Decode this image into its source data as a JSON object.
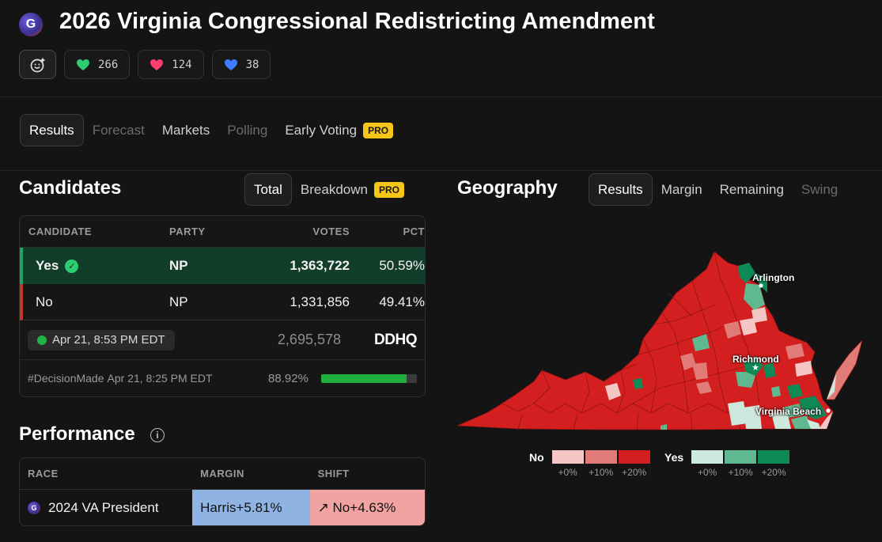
{
  "header": {
    "logo_letter": "G",
    "title": "2026 Virginia Congressional Redistricting Amendment",
    "reactions": [
      {
        "icon": "green-heart-icon",
        "color": "#2ecc71",
        "count": "266"
      },
      {
        "icon": "pink-heart-icon",
        "color": "#ff3d6e",
        "count": "124"
      },
      {
        "icon": "blue-heart-icon",
        "color": "#3d7bff",
        "count": "38"
      }
    ]
  },
  "tabs": {
    "results": "Results",
    "forecast": "Forecast",
    "markets": "Markets",
    "polling": "Polling",
    "early_voting": "Early Voting",
    "pro_badge": "PRO"
  },
  "candidates": {
    "title": "Candidates",
    "total": "Total",
    "breakdown": "Breakdown",
    "pro_badge": "PRO",
    "headers": {
      "candidate": "CANDIDATE",
      "party": "PARTY",
      "votes": "VOTES",
      "pct": "PCT"
    },
    "rows": [
      {
        "name": "Yes",
        "party": "NP",
        "votes": "1,363,722",
        "pct": "50.59%"
      },
      {
        "name": "No",
        "party": "NP",
        "votes": "1,331,856",
        "pct": "49.41%"
      }
    ],
    "updated": "Apr 21, 8:53 PM EDT",
    "total_votes": "2,695,578",
    "source": "DDHQ",
    "decision_tag": "#DecisionMade",
    "decision_time": "Apr 21, 8:25 PM EDT",
    "reporting_pct": "88.92%",
    "reporting_fraction": 0.8892
  },
  "performance": {
    "title": "Performance",
    "headers": {
      "race": "RACE",
      "margin": "MARGIN",
      "shift": "SHIFT"
    },
    "rows": [
      {
        "race": "2024 VA President",
        "margin": "Harris+5.81%",
        "shift": "↗ No+4.63%"
      }
    ]
  },
  "geography": {
    "title": "Geography",
    "tabs": {
      "results": "Results",
      "margin": "Margin",
      "remaining": "Remaining",
      "swing": "Swing"
    },
    "cities": {
      "arlington": "Arlington",
      "richmond": "Richmond",
      "virginia_beach": "Virginia Beach"
    },
    "legend": {
      "no_label": "No",
      "yes_label": "Yes",
      "steps": [
        "+0%",
        "+10%",
        "+20%"
      ],
      "no_colors": [
        "#f4c7c5",
        "#e07b78",
        "#d31f1f"
      ],
      "yes_colors": [
        "#cde8dd",
        "#5fb890",
        "#0e8a57"
      ]
    }
  }
}
